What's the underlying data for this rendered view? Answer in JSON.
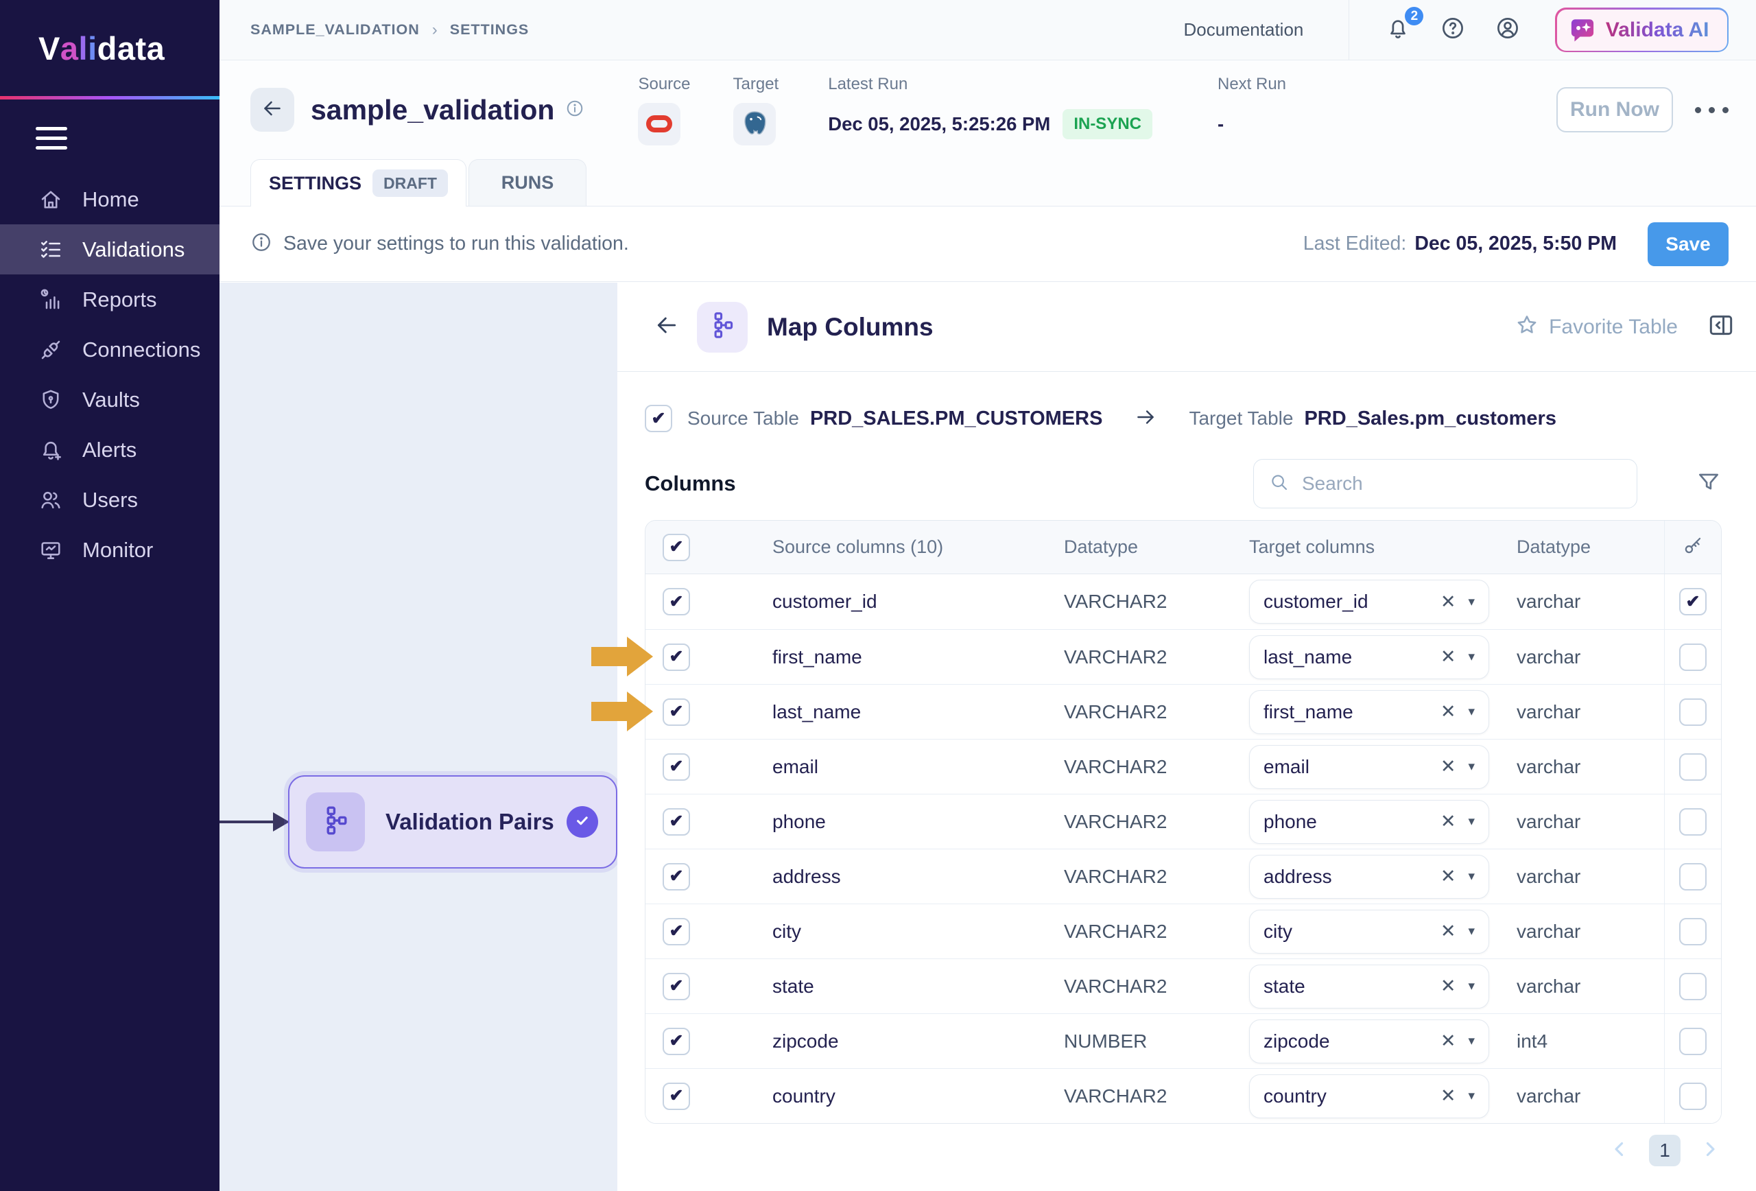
{
  "sidebar": {
    "logo_segments": [
      {
        "text": "V",
        "color": "#ffffff"
      },
      {
        "text": "a",
        "color": "#cf52c7"
      },
      {
        "text": "l",
        "color": "#9a6cf0"
      },
      {
        "text": "i",
        "color": "#6f8cf5"
      },
      {
        "text": "data",
        "color": "#ffffff"
      }
    ],
    "items": [
      {
        "label": "Home",
        "icon": "home",
        "active": false
      },
      {
        "label": "Validations",
        "icon": "validations",
        "active": true
      },
      {
        "label": "Reports",
        "icon": "reports",
        "active": false
      },
      {
        "label": "Connections",
        "icon": "connections",
        "active": false
      },
      {
        "label": "Vaults",
        "icon": "vaults",
        "active": false
      },
      {
        "label": "Alerts",
        "icon": "alerts",
        "active": false
      },
      {
        "label": "Users",
        "icon": "users",
        "active": false
      },
      {
        "label": "Monitor",
        "icon": "monitor",
        "active": false
      }
    ]
  },
  "topbar": {
    "breadcrumb": [
      "SAMPLE_VALIDATION",
      "SETTINGS"
    ],
    "documentation_label": "Documentation",
    "notification_count": "2",
    "ai_button_label": "Validata AI"
  },
  "header": {
    "title": "sample_validation",
    "source_label": "Source",
    "target_label": "Target",
    "latest_run_label": "Latest Run",
    "latest_run_value": "Dec 05, 2025, 5:25:26 PM",
    "sync_badge": "IN-SYNC",
    "next_run_label": "Next Run",
    "next_run_value": "-",
    "run_now_label": "Run Now"
  },
  "tabs": {
    "settings": "SETTINGS",
    "draft_badge": "DRAFT",
    "runs": "RUNS"
  },
  "alert_bar": {
    "message": "Save your settings to run this validation.",
    "last_edited_label": "Last Edited:",
    "last_edited_value": "Dec 05, 2025, 5:50 PM",
    "save_label": "Save"
  },
  "flow": {
    "node_label": "Validation Pairs"
  },
  "map_columns": {
    "title": "Map Columns",
    "favorite_label": "Favorite Table",
    "source_table_label": "Source Table",
    "source_table": "PRD_SALES.PM_CUSTOMERS",
    "target_table_label": "Target Table",
    "target_table": "PRD_Sales.pm_customers",
    "columns_heading": "Columns",
    "search_placeholder": "Search",
    "table": {
      "headers": {
        "source": "Source columns (10)",
        "datatype": "Datatype",
        "target": "Target columns",
        "datatype2": "Datatype"
      },
      "rows": [
        {
          "source": "customer_id",
          "src_type": "VARCHAR2",
          "target": "customer_id",
          "tgt_type": "varchar",
          "checked": true,
          "key": true,
          "arrow": false
        },
        {
          "source": "first_name",
          "src_type": "VARCHAR2",
          "target": "last_name",
          "tgt_type": "varchar",
          "checked": true,
          "key": false,
          "arrow": true
        },
        {
          "source": "last_name",
          "src_type": "VARCHAR2",
          "target": "first_name",
          "tgt_type": "varchar",
          "checked": true,
          "key": false,
          "arrow": true
        },
        {
          "source": "email",
          "src_type": "VARCHAR2",
          "target": "email",
          "tgt_type": "varchar",
          "checked": true,
          "key": false,
          "arrow": false
        },
        {
          "source": "phone",
          "src_type": "VARCHAR2",
          "target": "phone",
          "tgt_type": "varchar",
          "checked": true,
          "key": false,
          "arrow": false
        },
        {
          "source": "address",
          "src_type": "VARCHAR2",
          "target": "address",
          "tgt_type": "varchar",
          "checked": true,
          "key": false,
          "arrow": false
        },
        {
          "source": "city",
          "src_type": "VARCHAR2",
          "target": "city",
          "tgt_type": "varchar",
          "checked": true,
          "key": false,
          "arrow": false
        },
        {
          "source": "state",
          "src_type": "VARCHAR2",
          "target": "state",
          "tgt_type": "varchar",
          "checked": true,
          "key": false,
          "arrow": false
        },
        {
          "source": "zipcode",
          "src_type": "NUMBER",
          "target": "zipcode",
          "tgt_type": "int4",
          "checked": true,
          "key": false,
          "arrow": false
        },
        {
          "source": "country",
          "src_type": "VARCHAR2",
          "target": "country",
          "tgt_type": "varchar",
          "checked": true,
          "key": false,
          "arrow": false
        }
      ]
    },
    "pagination": {
      "current": "1"
    }
  },
  "colors": {
    "sidebar_bg": "#191442",
    "sidebar_active": "#454069",
    "save_blue": "#4799ea",
    "sync_green_text": "#1ca352",
    "sync_green_bg": "#e2f8e9",
    "node_purple": "#7b6ce4",
    "annotation_gold": "#e2a43b",
    "oracle_red": "#e23c2f",
    "postgres_blue": "#336791"
  }
}
